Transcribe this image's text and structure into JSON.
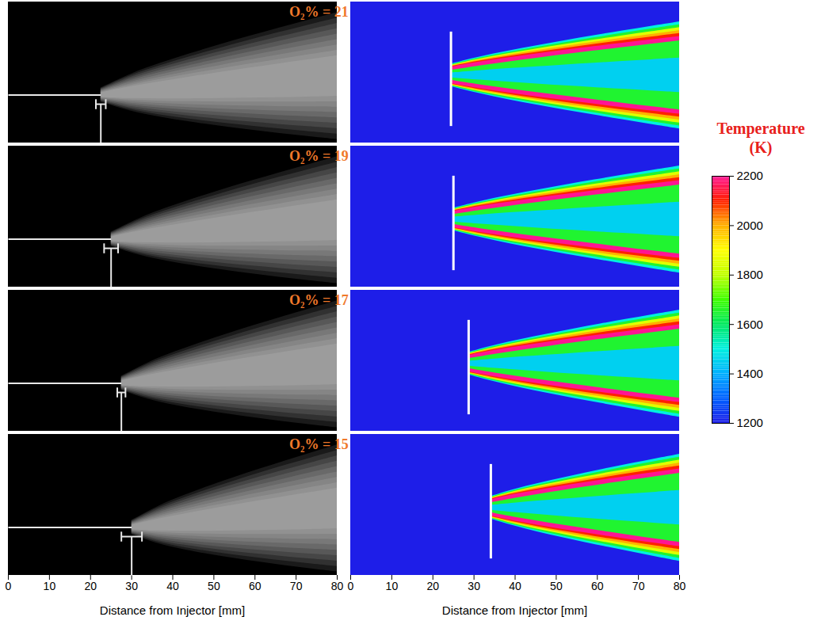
{
  "chart_data": [
    {
      "type": "image",
      "xlabel": "Distance from Injector [mm]",
      "xlim": [
        0,
        80
      ],
      "xticks": [
        0,
        10,
        20,
        30,
        40,
        50,
        60,
        70,
        80
      ],
      "panels": [
        {
          "label": "O₂% = 21",
          "liftoff": 22.5,
          "liftoff_error": 1.2
        },
        {
          "label": "O₂% = 19",
          "liftoff": 25,
          "liftoff_error": 1.7
        },
        {
          "label": "O₂% = 17",
          "liftoff": 27.5,
          "liftoff_error": 1.0
        },
        {
          "label": "O₂% = 15",
          "liftoff": 30,
          "liftoff_error": 2.5
        }
      ]
    },
    {
      "type": "contour",
      "xlabel": "Distance from Injector [mm]",
      "xlim": [
        0,
        80
      ],
      "xticks": [
        0,
        10,
        20,
        30,
        40,
        50,
        60,
        70,
        80
      ],
      "panels": [
        {
          "liftoff": 24.4
        },
        {
          "liftoff": 25
        },
        {
          "liftoff": 28.7
        },
        {
          "liftoff": 34.1
        }
      ],
      "contour_levels": [
        1500,
        1650,
        1850,
        2000,
        2100,
        2200
      ],
      "core_levels": [
        1650,
        1450
      ],
      "colorbar": {
        "title": "Temperature",
        "unit": "(K)",
        "range": [
          1200,
          2200
        ],
        "ticks": [
          1200,
          1400,
          1600,
          1800,
          2000,
          2200
        ]
      }
    }
  ]
}
